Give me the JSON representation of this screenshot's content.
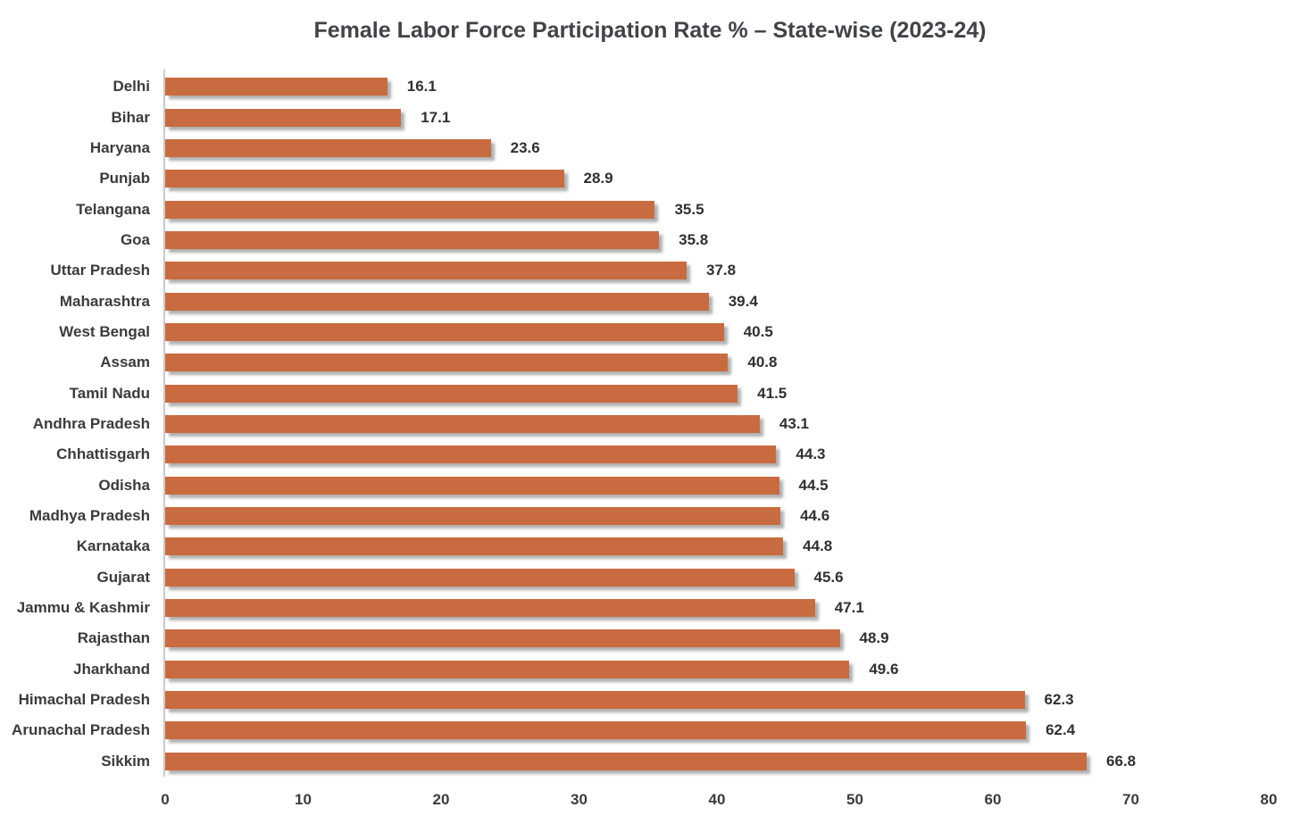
{
  "chart_data": {
    "type": "bar",
    "orientation": "horizontal",
    "title": "Female Labor Force Participation Rate % – State-wise (2023-24)",
    "categories": [
      "Delhi",
      "Bihar",
      "Haryana",
      "Punjab",
      "Telangana",
      "Goa",
      "Uttar Pradesh",
      "Maharashtra",
      "West Bengal",
      "Assam",
      "Tamil Nadu",
      "Andhra Pradesh",
      "Chhattisgarh",
      "Odisha",
      "Madhya Pradesh",
      "Karnataka",
      "Gujarat",
      "Jammu & Kashmir",
      "Rajasthan",
      "Jharkhand",
      "Himachal Pradesh",
      "Arunachal Pradesh",
      "Sikkim"
    ],
    "values": [
      16.1,
      17.1,
      23.6,
      28.9,
      35.5,
      35.8,
      37.8,
      39.4,
      40.5,
      40.8,
      41.5,
      43.1,
      44.3,
      44.5,
      44.6,
      44.8,
      45.6,
      47.1,
      48.9,
      49.6,
      62.3,
      62.4,
      66.8
    ],
    "value_labels": [
      "16.1",
      "17.1",
      "23.6",
      "28.9",
      "35.5",
      "35.8",
      "37.8",
      "39.4",
      "40.5",
      "40.8",
      "41.5",
      "43.1",
      "44.3",
      "44.5",
      "44.6",
      "44.8",
      "45.6",
      "47.1",
      "48.9",
      "49.6",
      "62.3",
      "62.4",
      "66.8"
    ],
    "xlabel": "",
    "ylabel": "",
    "xlim": [
      0,
      80
    ],
    "x_ticks": [
      "0",
      "10",
      "20",
      "30",
      "40",
      "50",
      "60",
      "70",
      "80"
    ],
    "grid": false,
    "legend": false,
    "data_labels": true,
    "bar_color": "#c96b40",
    "text_color": "#3b3b3b",
    "axis_line_color": "#c9c9c9"
  }
}
